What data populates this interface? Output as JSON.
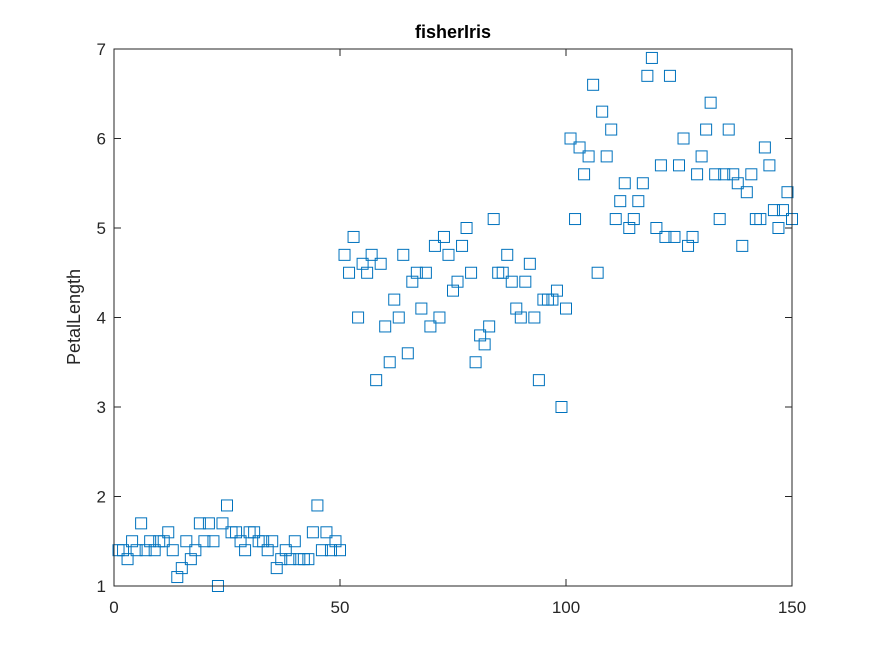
{
  "chart_data": {
    "type": "scatter",
    "title": "fisherIris",
    "xlabel": "",
    "ylabel": "PetalLength",
    "xlim": [
      0,
      150
    ],
    "ylim": [
      1,
      7
    ],
    "xticks": [
      "0",
      "50",
      "100",
      "150"
    ],
    "yticks": [
      "1",
      "2",
      "3",
      "4",
      "5",
      "6",
      "7"
    ],
    "grid": false,
    "marker": "square",
    "marker_color": "#0072BD",
    "series": [
      {
        "x": [
          1,
          2,
          3,
          4,
          5,
          6,
          7,
          8,
          9,
          10,
          11,
          12,
          13,
          14,
          15,
          16,
          17,
          18,
          19,
          20,
          21,
          22,
          23,
          24,
          25,
          26,
          27,
          28,
          29,
          30,
          31,
          32,
          33,
          34,
          35,
          36,
          37,
          38,
          39,
          40,
          41,
          42,
          43,
          44,
          45,
          46,
          47,
          48,
          49,
          50,
          51,
          52,
          53,
          54,
          55,
          56,
          57,
          58,
          59,
          60,
          61,
          62,
          63,
          64,
          65,
          66,
          67,
          68,
          69,
          70,
          71,
          72,
          73,
          74,
          75,
          76,
          77,
          78,
          79,
          80,
          81,
          82,
          83,
          84,
          85,
          86,
          87,
          88,
          89,
          90,
          91,
          92,
          93,
          94,
          95,
          96,
          97,
          98,
          99,
          100,
          101,
          102,
          103,
          104,
          105,
          106,
          107,
          108,
          109,
          110,
          111,
          112,
          113,
          114,
          115,
          116,
          117,
          118,
          119,
          120,
          121,
          122,
          123,
          124,
          125,
          126,
          127,
          128,
          129,
          130,
          131,
          132,
          133,
          134,
          135,
          136,
          137,
          138,
          139,
          140,
          141,
          142,
          143,
          144,
          145,
          146,
          147,
          148,
          149,
          150
        ],
        "y": [
          1.4,
          1.4,
          1.3,
          1.5,
          1.4,
          1.7,
          1.4,
          1.5,
          1.4,
          1.5,
          1.5,
          1.6,
          1.4,
          1.1,
          1.2,
          1.5,
          1.3,
          1.4,
          1.7,
          1.5,
          1.7,
          1.5,
          1.0,
          1.7,
          1.9,
          1.6,
          1.6,
          1.5,
          1.4,
          1.6,
          1.6,
          1.5,
          1.5,
          1.4,
          1.5,
          1.2,
          1.3,
          1.4,
          1.3,
          1.5,
          1.3,
          1.3,
          1.3,
          1.6,
          1.9,
          1.4,
          1.6,
          1.4,
          1.5,
          1.4,
          4.7,
          4.5,
          4.9,
          4.0,
          4.6,
          4.5,
          4.7,
          3.3,
          4.6,
          3.9,
          3.5,
          4.2,
          4.0,
          4.7,
          3.6,
          4.4,
          4.5,
          4.1,
          4.5,
          3.9,
          4.8,
          4.0,
          4.9,
          4.7,
          4.3,
          4.4,
          4.8,
          5.0,
          4.5,
          3.5,
          3.8,
          3.7,
          3.9,
          5.1,
          4.5,
          4.5,
          4.7,
          4.4,
          4.1,
          4.0,
          4.4,
          4.6,
          4.0,
          3.3,
          4.2,
          4.2,
          4.2,
          4.3,
          3.0,
          4.1,
          6.0,
          5.1,
          5.9,
          5.6,
          5.8,
          6.6,
          4.5,
          6.3,
          5.8,
          6.1,
          5.1,
          5.3,
          5.5,
          5.0,
          5.1,
          5.3,
          5.5,
          6.7,
          6.9,
          5.0,
          5.7,
          4.9,
          6.7,
          4.9,
          5.7,
          6.0,
          4.8,
          4.9,
          5.6,
          5.8,
          6.1,
          6.4,
          5.6,
          5.1,
          5.6,
          6.1,
          5.6,
          5.5,
          4.8,
          5.4,
          5.6,
          5.1,
          5.1,
          5.9,
          5.7,
          5.2,
          5.0,
          5.2,
          5.4,
          5.1
        ]
      }
    ]
  }
}
